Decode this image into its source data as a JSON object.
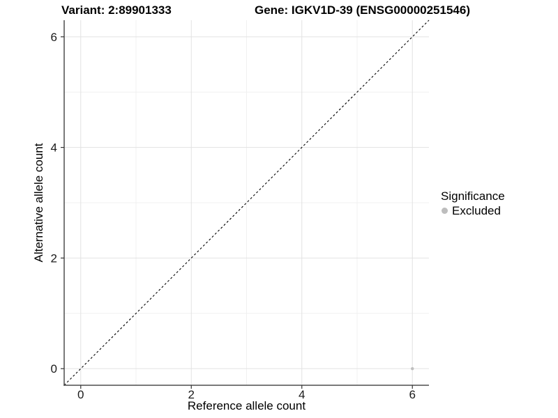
{
  "header": {
    "title_left": "Variant: 2:89901333",
    "title_right": "Gene: IGKV1D-39 (ENSG00000251546)"
  },
  "chart_data": {
    "type": "scatter",
    "title_left": "Variant: 2:89901333",
    "title_right": "Gene: IGKV1D-39 (ENSG00000251546)",
    "xlabel": "Reference allele count",
    "ylabel": "Alternative allele count",
    "xlim": [
      -0.3,
      6.3
    ],
    "ylim": [
      -0.3,
      6.3
    ],
    "x_major_ticks": [
      0,
      2,
      4,
      6
    ],
    "y_major_ticks": [
      0,
      2,
      4,
      6
    ],
    "x_minor_ticks": [
      1,
      3,
      5
    ],
    "y_minor_ticks": [
      1,
      3,
      5
    ],
    "grid": true,
    "points": [
      {
        "x": 6,
        "y": 0,
        "series": "Excluded"
      }
    ],
    "reference_line": {
      "slope": 1,
      "intercept": 0,
      "style": "dashed",
      "color": "#000000"
    },
    "legend": {
      "title": "Significance",
      "position": "right",
      "items": [
        {
          "label": "Excluded",
          "color": "#bdbdbd"
        }
      ]
    }
  },
  "colors": {
    "point": "#bebebe",
    "grid_major": "#e2e2e2",
    "grid_minor": "#f0f0f0",
    "axis_line": "#4d4d4d",
    "tick_mark": "#333333",
    "tick_text": "#1a1a1a",
    "reference_line": "#000000"
  }
}
